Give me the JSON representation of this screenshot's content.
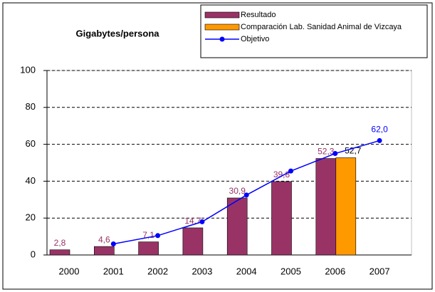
{
  "chart_data": {
    "type": "bar",
    "title": "Gigabytes/persona",
    "categories": [
      "2000",
      "2001",
      "2002",
      "2003",
      "2004",
      "2005",
      "2006",
      "2007"
    ],
    "series": [
      {
        "name": "Resultado",
        "color": "#993366",
        "type": "bar",
        "values": [
          2.8,
          4.6,
          7.1,
          14.7,
          30.9,
          39.8,
          52.3,
          null
        ],
        "value_labels": [
          "2,8",
          "4,6",
          "7,1",
          "14,7",
          "30,9",
          "39,8",
          "52,3",
          null
        ]
      },
      {
        "name": "Comparación Lab. Sanidad Animal de Vizcaya",
        "color": "#FF9900",
        "type": "bar",
        "values": [
          null,
          null,
          null,
          null,
          null,
          null,
          52.7,
          null
        ],
        "value_labels": [
          null,
          null,
          null,
          null,
          null,
          null,
          "52,7",
          null
        ]
      },
      {
        "name": "Objetivo",
        "color": "#0000FF",
        "type": "line",
        "values": [
          null,
          6,
          10.5,
          18,
          32.5,
          45.5,
          55,
          62.0
        ],
        "value_labels": [
          null,
          null,
          null,
          null,
          null,
          null,
          null,
          "62,0"
        ]
      }
    ],
    "ylim": [
      0,
      100
    ],
    "yticks": [
      0,
      20,
      40,
      60,
      80,
      100
    ],
    "grid": true
  }
}
